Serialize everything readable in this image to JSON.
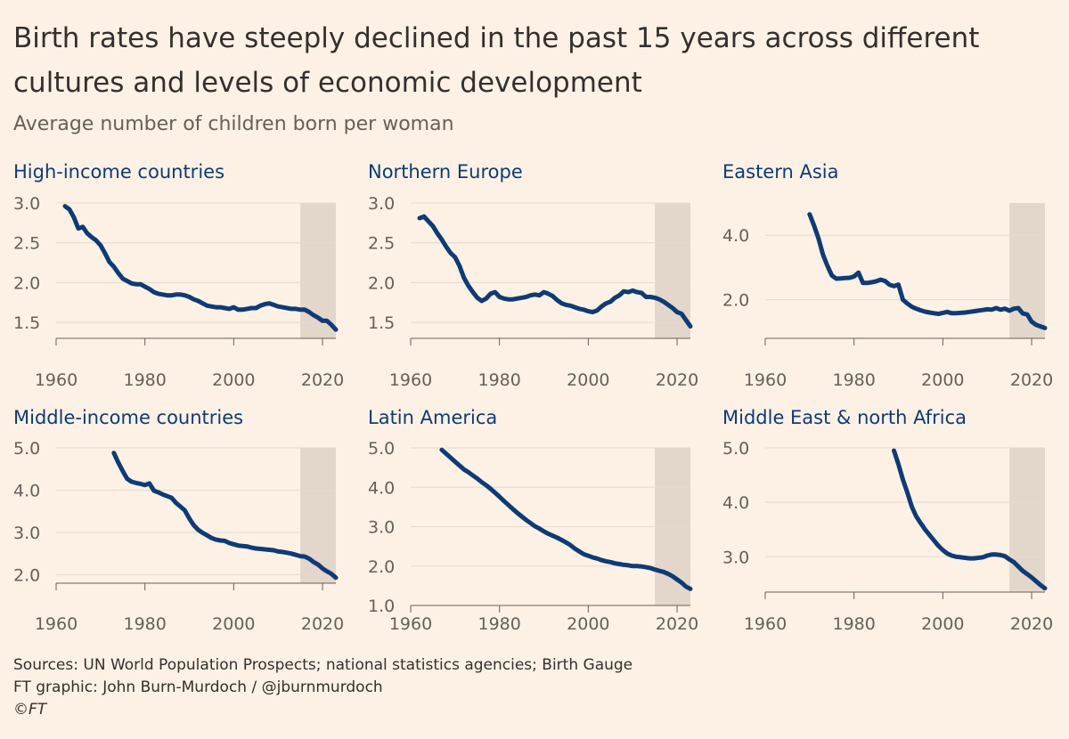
{
  "title": "Birth rates have steeply declined in the past 15 years across different cultures and levels of economic development",
  "subtitle": "Average number of children born per woman",
  "source": "Sources: UN World Population Prospects; national statistics agencies; Birth Gauge",
  "credit": "FT graphic: John Burn-Murdoch / @jburnmurdoch",
  "copyright": "©FT",
  "colors": {
    "background": "#fdf1e5",
    "line": "#0f3b75",
    "highlight": "#e3d6ca",
    "text": "#33302e",
    "muted": "#66605c"
  },
  "chart_data": [
    {
      "type": "line",
      "title": "High-income countries",
      "xlim": [
        1960,
        2023
      ],
      "ylim": [
        1.3,
        3.0
      ],
      "xticks": [
        "1960",
        "1980",
        "2000",
        "2020"
      ],
      "yticks": [
        "1.5",
        "2.0",
        "2.5",
        "3.0"
      ],
      "highlight_range": [
        2015,
        2023
      ],
      "x": [
        1962,
        1963,
        1964,
        1965,
        1966,
        1967,
        1968,
        1969,
        1970,
        1971,
        1972,
        1973,
        1974,
        1975,
        1976,
        1977,
        1978,
        1979,
        1980,
        1981,
        1982,
        1983,
        1984,
        1985,
        1986,
        1987,
        1988,
        1989,
        1990,
        1991,
        1992,
        1993,
        1994,
        1995,
        1996,
        1997,
        1998,
        1999,
        2000,
        2001,
        2002,
        2003,
        2004,
        2005,
        2006,
        2007,
        2008,
        2009,
        2010,
        2011,
        2012,
        2013,
        2014,
        2015,
        2016,
        2017,
        2018,
        2019,
        2020,
        2021,
        2022,
        2023
      ],
      "y": [
        2.96,
        2.92,
        2.82,
        2.68,
        2.7,
        2.62,
        2.57,
        2.53,
        2.47,
        2.37,
        2.26,
        2.2,
        2.12,
        2.05,
        2.02,
        1.99,
        1.98,
        1.98,
        1.95,
        1.92,
        1.88,
        1.86,
        1.85,
        1.84,
        1.84,
        1.85,
        1.85,
        1.84,
        1.82,
        1.79,
        1.77,
        1.74,
        1.71,
        1.7,
        1.69,
        1.69,
        1.68,
        1.67,
        1.69,
        1.66,
        1.66,
        1.67,
        1.68,
        1.68,
        1.71,
        1.73,
        1.74,
        1.72,
        1.7,
        1.69,
        1.68,
        1.67,
        1.67,
        1.66,
        1.66,
        1.63,
        1.59,
        1.56,
        1.52,
        1.52,
        1.47,
        1.41
      ]
    },
    {
      "type": "line",
      "title": "Northern Europe",
      "xlim": [
        1960,
        2023
      ],
      "ylim": [
        1.3,
        3.0
      ],
      "xticks": [
        "1960",
        "1980",
        "2000",
        "2020"
      ],
      "yticks": [
        "1.5",
        "2.0",
        "2.5",
        "3.0"
      ],
      "highlight_range": [
        2015,
        2023
      ],
      "x": [
        1962,
        1963,
        1964,
        1965,
        1966,
        1967,
        1968,
        1969,
        1970,
        1971,
        1972,
        1973,
        1974,
        1975,
        1976,
        1977,
        1978,
        1979,
        1980,
        1981,
        1982,
        1983,
        1984,
        1985,
        1986,
        1987,
        1988,
        1989,
        1990,
        1991,
        1992,
        1993,
        1994,
        1995,
        1996,
        1997,
        1998,
        1999,
        2000,
        2001,
        2002,
        2003,
        2004,
        2005,
        2006,
        2007,
        2008,
        2009,
        2010,
        2011,
        2012,
        2013,
        2014,
        2015,
        2016,
        2017,
        2018,
        2019,
        2020,
        2021,
        2022,
        2023
      ],
      "y": [
        2.81,
        2.83,
        2.77,
        2.71,
        2.62,
        2.54,
        2.45,
        2.37,
        2.32,
        2.21,
        2.06,
        1.96,
        1.88,
        1.81,
        1.77,
        1.8,
        1.86,
        1.88,
        1.82,
        1.8,
        1.79,
        1.79,
        1.8,
        1.81,
        1.82,
        1.84,
        1.85,
        1.84,
        1.88,
        1.86,
        1.83,
        1.78,
        1.74,
        1.72,
        1.71,
        1.69,
        1.67,
        1.66,
        1.64,
        1.63,
        1.65,
        1.7,
        1.74,
        1.76,
        1.81,
        1.84,
        1.89,
        1.88,
        1.9,
        1.88,
        1.87,
        1.82,
        1.82,
        1.81,
        1.79,
        1.76,
        1.72,
        1.68,
        1.63,
        1.61,
        1.53,
        1.45
      ]
    },
    {
      "type": "line",
      "title": "Eastern Asia",
      "xlim": [
        1960,
        2023
      ],
      "ylim": [
        0.8,
        5.0
      ],
      "xticks": [
        "1960",
        "1980",
        "2000",
        "2020"
      ],
      "yticks": [
        "2.0",
        "4.0"
      ],
      "highlight_range": [
        2015,
        2023
      ],
      "x": [
        1970,
        1971,
        1972,
        1973,
        1974,
        1975,
        1976,
        1977,
        1978,
        1979,
        1980,
        1981,
        1982,
        1983,
        1984,
        1985,
        1986,
        1987,
        1988,
        1989,
        1990,
        1991,
        1992,
        1993,
        1994,
        1995,
        1996,
        1997,
        1998,
        1999,
        2000,
        2001,
        2002,
        2003,
        2004,
        2005,
        2006,
        2007,
        2008,
        2009,
        2010,
        2011,
        2012,
        2013,
        2014,
        2015,
        2016,
        2017,
        2018,
        2019,
        2020,
        2021,
        2022,
        2023
      ],
      "y": [
        4.65,
        4.3,
        3.9,
        3.4,
        3.05,
        2.75,
        2.65,
        2.66,
        2.67,
        2.68,
        2.72,
        2.84,
        2.52,
        2.52,
        2.54,
        2.57,
        2.62,
        2.58,
        2.46,
        2.42,
        2.47,
        2.0,
        1.88,
        1.78,
        1.72,
        1.67,
        1.63,
        1.6,
        1.58,
        1.56,
        1.59,
        1.62,
        1.58,
        1.58,
        1.59,
        1.6,
        1.62,
        1.64,
        1.66,
        1.68,
        1.7,
        1.69,
        1.74,
        1.69,
        1.72,
        1.66,
        1.72,
        1.74,
        1.57,
        1.54,
        1.32,
        1.22,
        1.17,
        1.12
      ]
    },
    {
      "type": "line",
      "title": "Middle-income countries",
      "xlim": [
        1960,
        2023
      ],
      "ylim": [
        1.8,
        5.0
      ],
      "xticks": [
        "1960",
        "1980",
        "2000",
        "2020"
      ],
      "yticks": [
        "2.0",
        "3.0",
        "4.0",
        "5.0"
      ],
      "highlight_range": [
        2015,
        2023
      ],
      "x": [
        1973,
        1974,
        1975,
        1976,
        1977,
        1978,
        1979,
        1980,
        1981,
        1982,
        1983,
        1984,
        1985,
        1986,
        1987,
        1988,
        1989,
        1990,
        1991,
        1992,
        1993,
        1994,
        1995,
        1996,
        1997,
        1998,
        1999,
        2000,
        2001,
        2002,
        2003,
        2004,
        2005,
        2006,
        2007,
        2008,
        2009,
        2010,
        2011,
        2012,
        2013,
        2014,
        2015,
        2016,
        2017,
        2018,
        2019,
        2020,
        2021,
        2022,
        2023
      ],
      "y": [
        4.88,
        4.65,
        4.45,
        4.27,
        4.2,
        4.17,
        4.15,
        4.12,
        4.16,
        3.99,
        3.95,
        3.9,
        3.86,
        3.82,
        3.7,
        3.61,
        3.52,
        3.33,
        3.17,
        3.06,
        2.99,
        2.93,
        2.87,
        2.83,
        2.81,
        2.8,
        2.75,
        2.72,
        2.69,
        2.68,
        2.67,
        2.64,
        2.62,
        2.61,
        2.6,
        2.59,
        2.58,
        2.55,
        2.54,
        2.52,
        2.5,
        2.47,
        2.44,
        2.43,
        2.38,
        2.3,
        2.24,
        2.15,
        2.08,
        2.02,
        1.93
      ]
    },
    {
      "type": "line",
      "title": "Latin America",
      "xlim": [
        1960,
        2023
      ],
      "ylim": [
        1.0,
        5.0
      ],
      "xticks": [
        "1960",
        "1980",
        "2000",
        "2020"
      ],
      "yticks": [
        "1.0",
        "2.0",
        "3.0",
        "4.0",
        "5.0"
      ],
      "highlight_range": [
        2015,
        2023
      ],
      "x": [
        1967,
        1968,
        1969,
        1970,
        1971,
        1972,
        1973,
        1974,
        1975,
        1976,
        1977,
        1978,
        1979,
        1980,
        1981,
        1982,
        1983,
        1984,
        1985,
        1986,
        1987,
        1988,
        1989,
        1990,
        1991,
        1992,
        1993,
        1994,
        1995,
        1996,
        1997,
        1998,
        1999,
        2000,
        2001,
        2002,
        2003,
        2004,
        2005,
        2006,
        2007,
        2008,
        2009,
        2010,
        2011,
        2012,
        2013,
        2014,
        2015,
        2016,
        2017,
        2018,
        2019,
        2020,
        2021,
        2022,
        2023
      ],
      "y": [
        4.95,
        4.85,
        4.75,
        4.65,
        4.55,
        4.45,
        4.38,
        4.3,
        4.22,
        4.13,
        4.05,
        3.96,
        3.86,
        3.76,
        3.65,
        3.55,
        3.45,
        3.35,
        3.26,
        3.17,
        3.09,
        3.01,
        2.95,
        2.88,
        2.82,
        2.77,
        2.72,
        2.66,
        2.6,
        2.53,
        2.44,
        2.37,
        2.3,
        2.26,
        2.22,
        2.19,
        2.15,
        2.12,
        2.1,
        2.07,
        2.05,
        2.03,
        2.02,
        2.0,
        2.0,
        1.99,
        1.97,
        1.95,
        1.91,
        1.88,
        1.85,
        1.8,
        1.74,
        1.66,
        1.58,
        1.48,
        1.42
      ]
    },
    {
      "type": "line",
      "title": "Middle East & north Africa",
      "xlim": [
        1960,
        2023
      ],
      "ylim": [
        2.35,
        5.0
      ],
      "xticks": [
        "1960",
        "1980",
        "2000",
        "2020"
      ],
      "yticks": [
        "3.0",
        "4.0",
        "5.0"
      ],
      "highlight_range": [
        2015,
        2023
      ],
      "x": [
        1989,
        1990,
        1991,
        1992,
        1993,
        1994,
        1995,
        1996,
        1997,
        1998,
        1999,
        2000,
        2001,
        2002,
        2003,
        2004,
        2005,
        2006,
        2007,
        2008,
        2009,
        2010,
        2011,
        2012,
        2013,
        2014,
        2015,
        2016,
        2017,
        2018,
        2019,
        2020,
        2021,
        2022,
        2023
      ],
      "y": [
        4.95,
        4.7,
        4.42,
        4.18,
        3.92,
        3.74,
        3.62,
        3.5,
        3.4,
        3.3,
        3.2,
        3.12,
        3.06,
        3.02,
        3.0,
        2.99,
        2.98,
        2.97,
        2.97,
        2.98,
        2.99,
        3.02,
        3.04,
        3.04,
        3.03,
        3.01,
        2.95,
        2.9,
        2.82,
        2.74,
        2.68,
        2.62,
        2.55,
        2.48,
        2.42
      ]
    }
  ]
}
